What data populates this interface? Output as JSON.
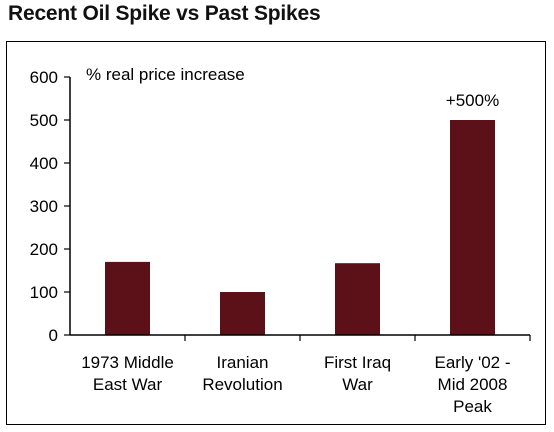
{
  "chart_data": {
    "type": "bar",
    "title": "Recent Oil Spike vs Past Spikes",
    "ylabel": "% real price increase",
    "xlabel": "",
    "categories": [
      [
        "1973 Middle",
        "East War"
      ],
      [
        "Iranian",
        "Revolution"
      ],
      [
        "First Iraq",
        "War"
      ],
      [
        "Early '02 -",
        "Mid 2008",
        "Peak"
      ]
    ],
    "values": [
      170,
      100,
      167,
      500
    ],
    "data_labels": [
      "",
      "",
      "",
      "+500%"
    ],
    "ylim": [
      0,
      600
    ],
    "yticks": [
      0,
      100,
      200,
      300,
      400,
      500,
      600
    ],
    "grid": false,
    "colors": {
      "bar": "#5c1119",
      "axis": "#000000"
    }
  }
}
